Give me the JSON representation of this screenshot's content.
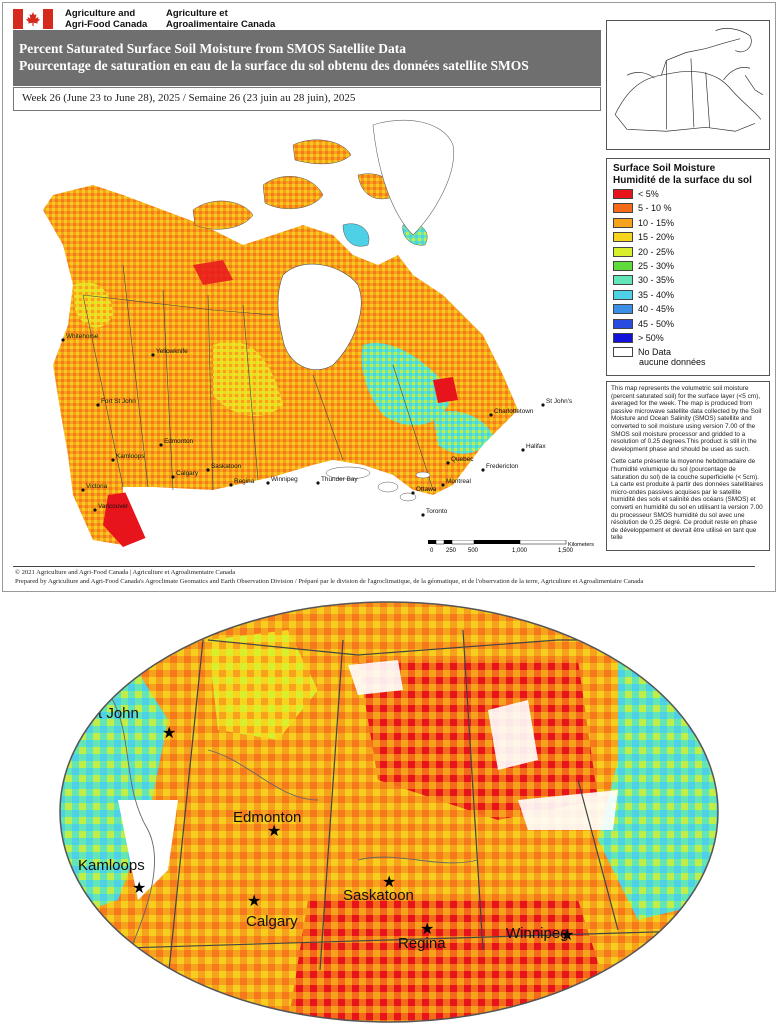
{
  "header": {
    "org_en": [
      "Agriculture and",
      "Agri-Food Canada"
    ],
    "org_fr": [
      "Agriculture et",
      "Agroalimentaire Canada"
    ],
    "title_en": "Percent Saturated Surface Soil Moisture from SMOS Satellite Data",
    "title_fr": "Pourcentage de saturation en eau de la surface du sol obtenu des données satellite SMOS",
    "week": "Week 26 (June 23 to June 28), 2025 / Semaine 26 (23 juin au 28 juin), 2025"
  },
  "legend": {
    "title_en": "Surface Soil Moisture",
    "title_fr": "Humidité de la surface du sol",
    "items": [
      {
        "label": "< 5%",
        "color": "#e8141c"
      },
      {
        "label": "5 - 10 %",
        "color": "#f56a1a"
      },
      {
        "label": "10 - 15%",
        "color": "#f7a21c"
      },
      {
        "label": "15 - 20%",
        "color": "#f7d51e"
      },
      {
        "label": "20 - 25%",
        "color": "#d7ef2c"
      },
      {
        "label": "25 - 30%",
        "color": "#5fdc3c"
      },
      {
        "label": "30 - 35%",
        "color": "#62e6b8"
      },
      {
        "label": "35 - 40%",
        "color": "#4ed0e6"
      },
      {
        "label": "40 - 45%",
        "color": "#3a8ee6"
      },
      {
        "label": "45 - 50%",
        "color": "#2a4be0"
      },
      {
        "label": "> 50%",
        "color": "#1212d8"
      },
      {
        "label": "No Data",
        "label2": "aucune données",
        "color": "#ffffff"
      }
    ]
  },
  "description": {
    "en": "This map represents the volumetric soil moisture (percent saturated soil) for the surface layer (<5 cm), averaged for the week. The map is produced from passive microwave satellite data collected by the Soil Moisture and Ocean Salinity (SMOS) satellite and converted to soil moisture using version 7.00 of the SMOS soil moisture processor and gridded to a resolution of 0.25 degrees.This product is still in the development phase and should be used as such.",
    "fr": "Cette carte présente la moyenne hebdomadaire de l'humidité volumique du sol (pourcentage de saturation du sol) de la couche superficielle (< 5cm). La carte est produite à partir des données satellitaires micro-ondes passives acquises par le satellite humidité des sols et salinité des océans (SMOS) et converti en humidité du sol en utilisant la version 7.00 du processeur SMOS humidité du sol avec une résolution de 0.25 degré. Ce produit reste en phase de développement et devrait être utilisé en tant que telle"
  },
  "cities": [
    "Whitehorse",
    "Yellowknife",
    "Fort St John",
    "Edmonton",
    "Kamloops",
    "Calgary",
    "Saskatoon",
    "Regina",
    "Winnipeg",
    "Victoria",
    "Vancouver",
    "Thunder Bay",
    "Toronto",
    "Ottawa",
    "Montreal",
    "Quebec",
    "Fredericton",
    "Charlottetown",
    "Halifax",
    "St John's"
  ],
  "scale": {
    "ticks": [
      "0",
      "250",
      "500",
      "1,000",
      "1,500"
    ],
    "unit": "Kilometers"
  },
  "footer": {
    "copyright": "© 2021 Agriculture and Agri-Food Canada | Agriculture et Agroalimentaire Canada",
    "prepared": "Prepared by Agriculture and Agri-Food Canada's Agroclimate Geomatics and Earth Observation Division / Préparé par le division de l'agroclimatique, de la géomatique, et de l'observation de la terre, Agriculture et Agroalimentaire Canada"
  },
  "zoom_cities": [
    "St John",
    "Edmonton",
    "Kamloops",
    "Calgary",
    "Saskatoon",
    "Regina",
    "Winnipeg"
  ]
}
